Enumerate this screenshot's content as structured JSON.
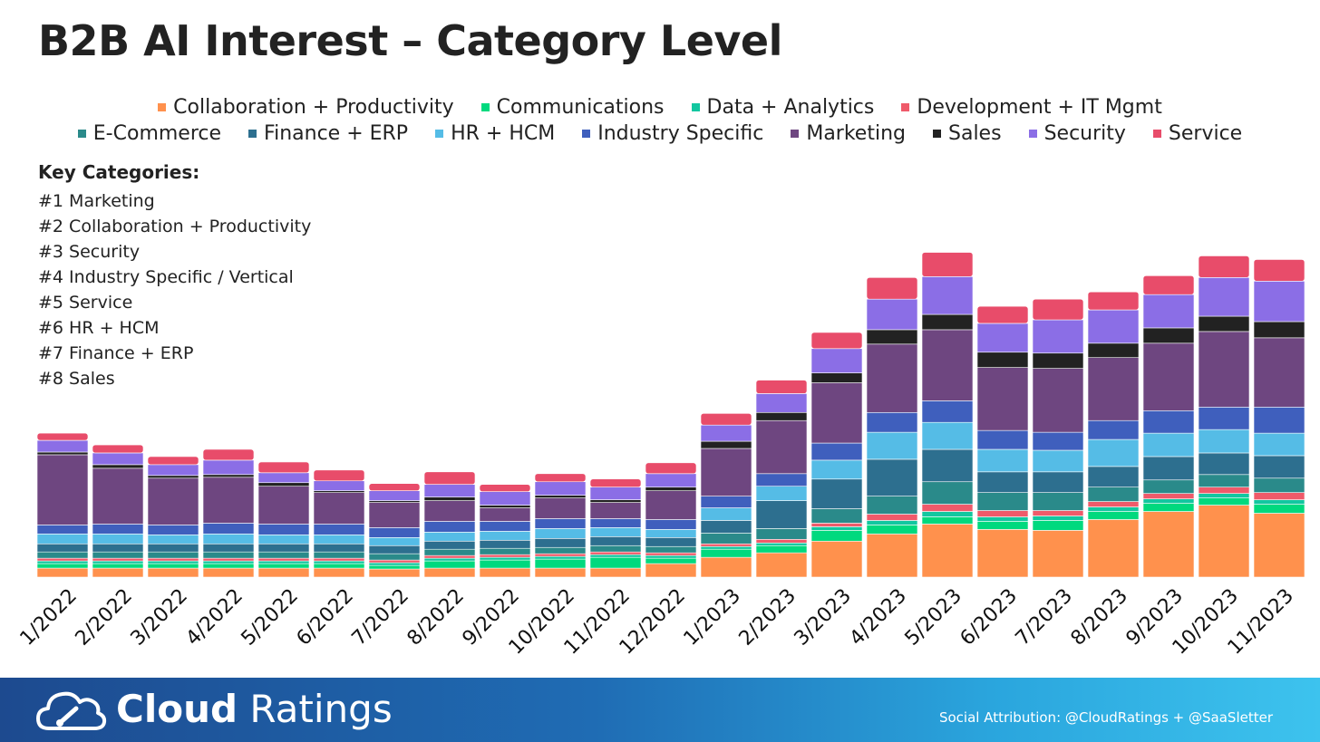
{
  "title": "B2B AI Interest – Category Level",
  "key_categories": {
    "title": "Key Categories:",
    "items": [
      "#1 Marketing",
      "#2 Collaboration + Productivity",
      "#3 Security",
      "#4 Industry Specific / Vertical",
      "#5 Service",
      "#6 HR + HCM",
      "#7 Finance + ERP",
      "#8 Sales"
    ]
  },
  "footer": {
    "brand_bold": "Cloud",
    "brand_light": "Ratings",
    "attribution": "Social Attribution: @CloudRatings + @SaaSletter"
  },
  "chart_data": {
    "type": "bar",
    "stacked": true,
    "title": "B2B AI Interest – Category Level",
    "xlabel": "",
    "ylabel": "",
    "y_axis_shown": false,
    "grid": false,
    "legend_position": "top",
    "ylim": [
      0,
      430
    ],
    "categories": [
      "1/2022",
      "2/2022",
      "3/2022",
      "4/2022",
      "5/2022",
      "6/2022",
      "7/2022",
      "8/2022",
      "9/2022",
      "10/2022",
      "11/2022",
      "12/2022",
      "1/2023",
      "2/2023",
      "3/2023",
      "4/2023",
      "5/2023",
      "6/2023",
      "7/2023",
      "8/2023",
      "9/2023",
      "10/2023",
      "11/2023"
    ],
    "series": [
      {
        "name": "Collaboration + Productivity",
        "color": "#ff914d",
        "values": [
          10,
          10,
          10,
          10,
          10,
          10,
          9,
          10,
          10,
          10,
          10,
          15,
          22,
          27,
          40,
          48,
          59,
          53,
          52,
          64,
          73,
          80,
          71
        ]
      },
      {
        "name": "Communications",
        "color": "#00d97e",
        "values": [
          5,
          5,
          5,
          5,
          5,
          5,
          4,
          8,
          9,
          10,
          12,
          6,
          9,
          8,
          12,
          10,
          8,
          9,
          11,
          9,
          9,
          8,
          10
        ]
      },
      {
        "name": "Data + Analytics",
        "color": "#12c7a0",
        "values": [
          3,
          3,
          3,
          3,
          3,
          3,
          3,
          3,
          3,
          3,
          3,
          3,
          3,
          3,
          4,
          5,
          6,
          5,
          5,
          5,
          5,
          5,
          5
        ]
      },
      {
        "name": "Development + IT Mgmt",
        "color": "#ef5a6a",
        "values": [
          3,
          3,
          3,
          3,
          3,
          3,
          3,
          3,
          3,
          3,
          3,
          3,
          3,
          4,
          4,
          7,
          8,
          7,
          6,
          6,
          6,
          7,
          8
        ]
      },
      {
        "name": "E-Commerce",
        "color": "#2a8a8a",
        "values": [
          7,
          7,
          7,
          7,
          7,
          7,
          7,
          7,
          7,
          7,
          7,
          7,
          12,
          12,
          16,
          20,
          25,
          20,
          20,
          16,
          15,
          14,
          16
        ]
      },
      {
        "name": "Finance + ERP",
        "color": "#2d6f8f",
        "values": [
          9,
          9,
          9,
          9,
          9,
          9,
          9,
          9,
          9,
          10,
          10,
          10,
          14,
          31,
          33,
          41,
          36,
          23,
          23,
          23,
          26,
          24,
          25
        ]
      },
      {
        "name": "HR + HCM",
        "color": "#55bce6",
        "values": [
          11,
          11,
          10,
          11,
          10,
          10,
          9,
          10,
          10,
          11,
          10,
          9,
          14,
          16,
          21,
          30,
          30,
          25,
          24,
          30,
          26,
          26,
          25
        ]
      },
      {
        "name": "Industry Specific",
        "color": "#3f5fbd",
        "values": [
          10,
          11,
          11,
          12,
          12,
          12,
          11,
          12,
          11,
          11,
          10,
          11,
          13,
          14,
          19,
          22,
          24,
          21,
          20,
          21,
          25,
          25,
          29
        ]
      },
      {
        "name": "Marketing",
        "color": "#6e4680",
        "values": [
          78,
          62,
          52,
          51,
          42,
          35,
          28,
          23,
          15,
          23,
          18,
          32,
          53,
          59,
          67,
          76,
          79,
          70,
          71,
          70,
          75,
          84,
          77
        ]
      },
      {
        "name": "Sales",
        "color": "#222222",
        "values": [
          3,
          4,
          3,
          3,
          4,
          2,
          2,
          4,
          3,
          3,
          3,
          4,
          8,
          9,
          11,
          16,
          17,
          17,
          17,
          16,
          17,
          17,
          18
        ]
      },
      {
        "name": "Security",
        "color": "#8b6ee6",
        "values": [
          13,
          13,
          12,
          16,
          11,
          11,
          11,
          14,
          15,
          15,
          14,
          15,
          18,
          21,
          27,
          34,
          42,
          32,
          37,
          37,
          37,
          43,
          45
        ]
      },
      {
        "name": "Service",
        "color": "#e84c6a",
        "values": [
          8,
          9,
          9,
          12,
          12,
          12,
          8,
          14,
          8,
          9,
          9,
          12,
          13,
          15,
          18,
          24,
          27,
          19,
          23,
          20,
          21,
          24,
          24
        ]
      }
    ]
  }
}
